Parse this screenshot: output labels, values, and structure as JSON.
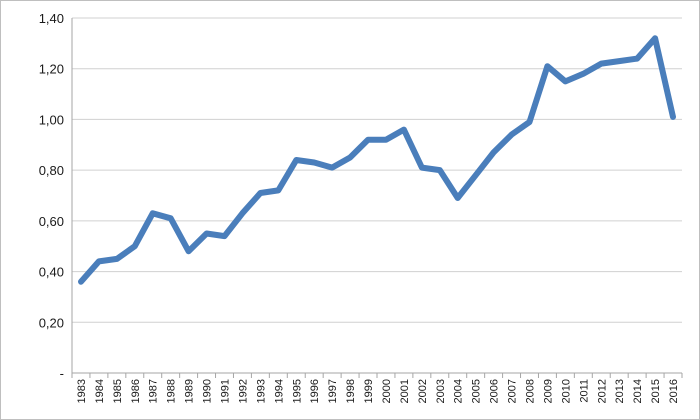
{
  "chart_data": {
    "type": "line",
    "title": "",
    "xlabel": "",
    "ylabel": "",
    "ylim": [
      0,
      1.4
    ],
    "y_ticks": [
      {
        "value": 0,
        "label": "-"
      },
      {
        "value": 0.2,
        "label": "0,20"
      },
      {
        "value": 0.4,
        "label": "0,40"
      },
      {
        "value": 0.6,
        "label": "0,60"
      },
      {
        "value": 0.8,
        "label": "0,80"
      },
      {
        "value": 1.0,
        "label": "1,00"
      },
      {
        "value": 1.2,
        "label": "1,20"
      },
      {
        "value": 1.4,
        "label": "1,40"
      }
    ],
    "grid": true,
    "legend": "none",
    "series_color": "#4a7ebb",
    "grid_color": "#d0d0d0",
    "categories": [
      "1983",
      "1984",
      "1985",
      "1986",
      "1987",
      "1988",
      "1989",
      "1990",
      "1991",
      "1992",
      "1993",
      "1994",
      "1995",
      "1996",
      "1997",
      "1998",
      "1999",
      "2000",
      "2001",
      "2002",
      "2003",
      "2004",
      "2005",
      "2006",
      "2007",
      "2008",
      "2009",
      "2010",
      "2011",
      "2012",
      "2013",
      "2014",
      "2015",
      "2016"
    ],
    "values": [
      0.36,
      0.44,
      0.45,
      0.5,
      0.63,
      0.61,
      0.48,
      0.55,
      0.54,
      0.63,
      0.71,
      0.72,
      0.84,
      0.83,
      0.81,
      0.85,
      0.92,
      0.92,
      0.96,
      0.81,
      0.8,
      0.69,
      0.78,
      0.87,
      0.94,
      0.99,
      1.21,
      1.15,
      1.18,
      1.22,
      1.23,
      1.24,
      1.32,
      1.01
    ]
  }
}
